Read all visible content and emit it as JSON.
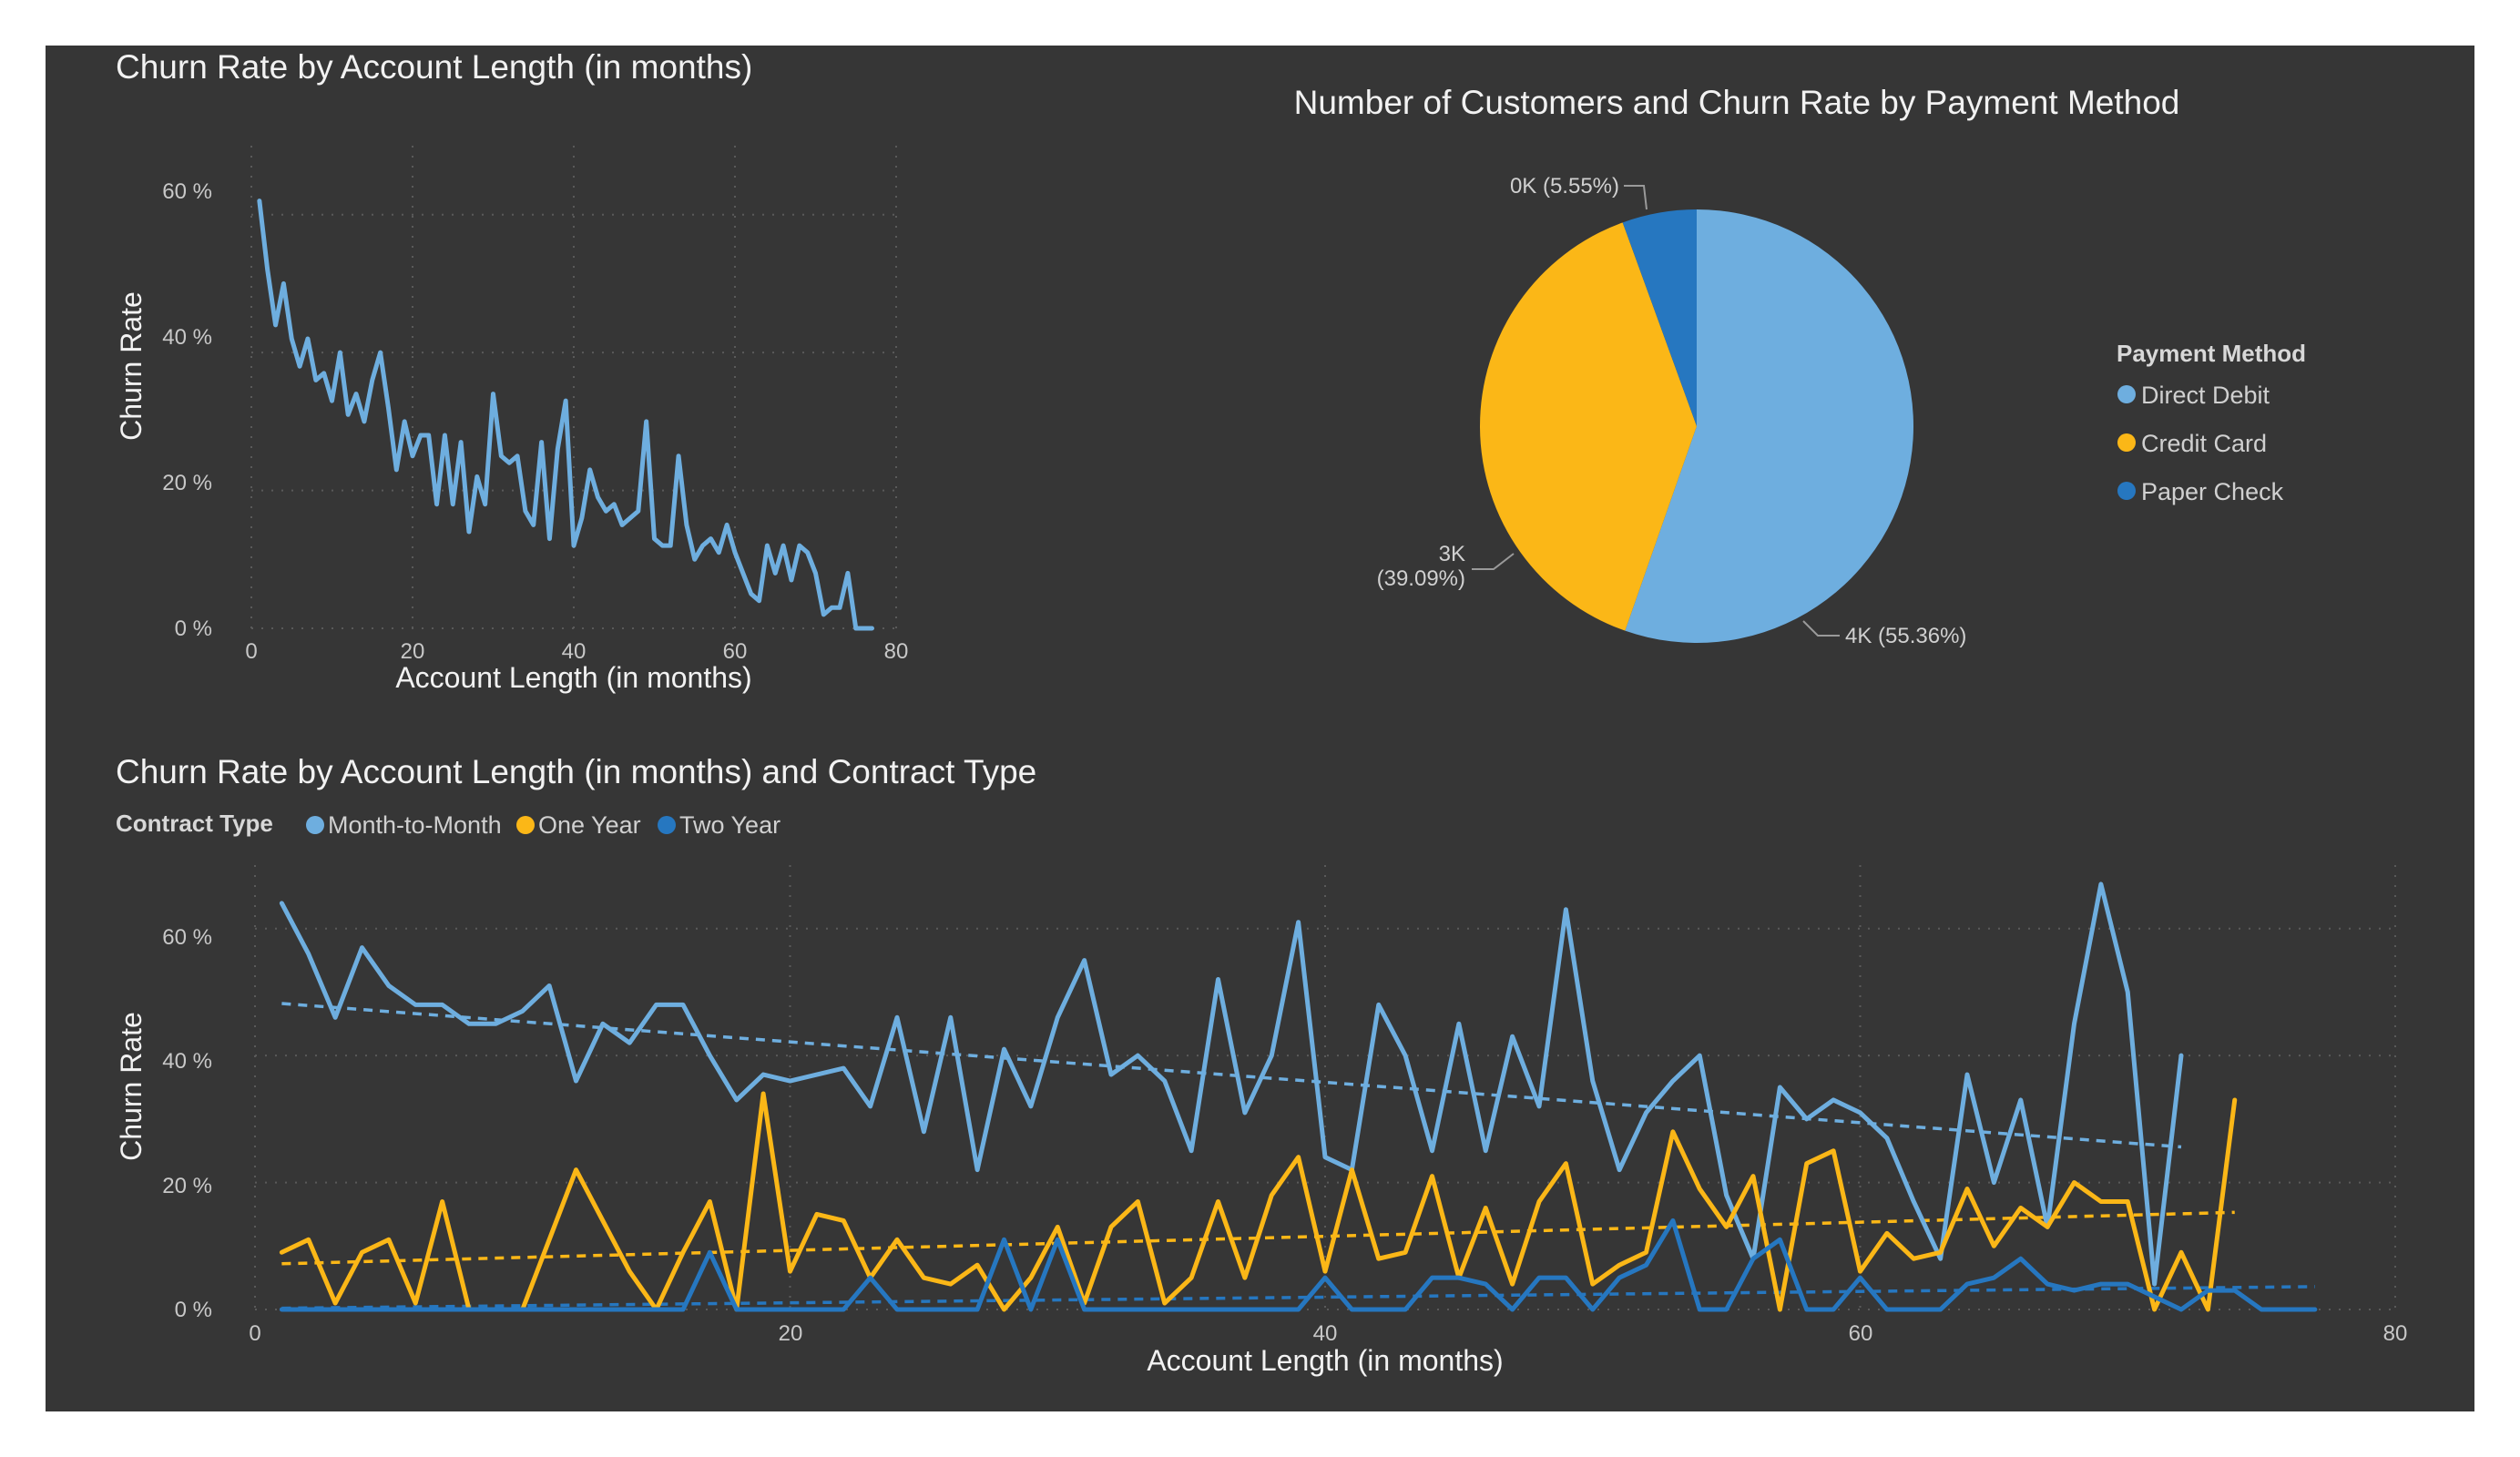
{
  "colors": {
    "background": "#363636",
    "direct_debit": "#6eaedf",
    "credit_card": "#fbb717",
    "paper_check": "#2677c0",
    "month_to_month": "#6eaedf",
    "one_year": "#fbb717",
    "two_year": "#2677c0"
  },
  "chart_data": [
    {
      "type": "line",
      "title": "Churn Rate by Account Length (in months)",
      "xlabel": "Account Length (in months)",
      "ylabel": "Churn Rate",
      "xlim": [
        0,
        80
      ],
      "ylim": [
        0,
        70
      ],
      "x_ticks": [
        "0",
        "20",
        "40",
        "60",
        "80"
      ],
      "y_ticks": [
        "0 %",
        "20 %",
        "40 %",
        "60 %"
      ],
      "grid": true,
      "series": [
        {
          "color": "#6eaedf",
          "x": [
            1,
            2,
            3,
            4,
            5,
            6,
            7,
            8,
            9,
            10,
            11,
            12,
            13,
            14,
            15,
            16,
            17,
            18,
            19,
            20,
            21,
            22,
            23,
            24,
            25,
            26,
            27,
            28,
            29,
            30,
            31,
            32,
            33,
            34,
            35,
            36,
            37,
            38,
            39,
            40,
            41,
            42,
            43,
            44,
            45,
            46,
            47,
            48,
            49,
            50,
            51,
            52,
            53,
            54,
            55,
            56,
            57,
            58,
            59,
            60,
            61,
            62,
            63,
            64,
            65,
            66,
            67,
            68,
            69,
            70,
            71,
            72,
            73,
            74,
            75,
            76,
            77
          ],
          "values": [
            62,
            52,
            44,
            50,
            42,
            38,
            42,
            36,
            37,
            33,
            40,
            31,
            34,
            30,
            36,
            40,
            32,
            23,
            30,
            25,
            28,
            28,
            18,
            28,
            18,
            27,
            14,
            22,
            18,
            34,
            25,
            24,
            25,
            17,
            15,
            27,
            13,
            26,
            33,
            12,
            16,
            23,
            19,
            17,
            18,
            15,
            16,
            17,
            30,
            13,
            12,
            12,
            25,
            15,
            10,
            12,
            13,
            11,
            15,
            11,
            8,
            5,
            4,
            12,
            8,
            12,
            7,
            12,
            11,
            8,
            2,
            3,
            3,
            8,
            0,
            0,
            0
          ]
        }
      ]
    },
    {
      "type": "pie",
      "title": "Number of Customers and Churn Rate by Payment Method",
      "legend_title": "Payment Method",
      "legend_position": "right",
      "slices": [
        {
          "name": "Direct Debit",
          "value": 55.36,
          "label": "4K (55.36%)",
          "color": "#6eaedf"
        },
        {
          "name": "Credit Card",
          "value": 39.09,
          "label_line1": "3K",
          "label_line2": "(39.09%)",
          "color": "#fbb717"
        },
        {
          "name": "Paper Check",
          "value": 5.55,
          "label": "0K (5.55%)",
          "color": "#2677c0"
        }
      ]
    },
    {
      "type": "line",
      "title": "Churn Rate by Account Length (in months) and Contract Type",
      "legend_title": "Contract Type",
      "legend_position": "top-left",
      "xlabel": "Account Length (in months)",
      "ylabel": "Churn Rate",
      "xlim": [
        0,
        80
      ],
      "ylim": [
        0,
        70
      ],
      "x_ticks": [
        "0",
        "20",
        "40",
        "60",
        "80"
      ],
      "y_ticks": [
        "0 %",
        "20 %",
        "40 %",
        "60 %"
      ],
      "grid": true,
      "trend_lines": true,
      "series": [
        {
          "name": "Month-to-Month",
          "color": "#6eaedf",
          "x": [
            1,
            2,
            3,
            4,
            5,
            6,
            7,
            8,
            9,
            10,
            11,
            12,
            13,
            14,
            15,
            16,
            17,
            18,
            19,
            20,
            21,
            22,
            23,
            24,
            25,
            26,
            27,
            28,
            29,
            30,
            31,
            32,
            33,
            34,
            35,
            36,
            37,
            38,
            39,
            40,
            41,
            42,
            43,
            44,
            45,
            46,
            47,
            48,
            49,
            50,
            51,
            52,
            53,
            54,
            55,
            56,
            57,
            58,
            59,
            60,
            61,
            62,
            63,
            64,
            65,
            66,
            67,
            68,
            69,
            70,
            71,
            72
          ],
          "values": [
            64,
            56,
            46,
            57,
            51,
            48,
            48,
            45,
            45,
            47,
            51,
            36,
            45,
            42,
            48,
            48,
            40,
            33,
            37,
            36,
            37,
            38,
            32,
            46,
            28,
            46,
            22,
            41,
            32,
            46,
            55,
            37,
            40,
            36,
            25,
            52,
            31,
            40,
            61,
            24,
            22,
            48,
            40,
            25,
            45,
            25,
            43,
            32,
            63,
            36,
            22,
            31,
            36,
            40,
            18,
            8,
            35,
            30,
            33,
            31,
            27,
            17,
            8,
            37,
            20,
            33,
            13,
            45,
            67,
            50,
            4,
            40
          ],
          "trend": [
            48.2,
            25.6
          ]
        },
        {
          "name": "One Year",
          "color": "#fbb717",
          "x": [
            1,
            2,
            3,
            4,
            5,
            6,
            7,
            8,
            9,
            10,
            11,
            12,
            13,
            14,
            15,
            16,
            17,
            18,
            19,
            20,
            21,
            22,
            23,
            24,
            25,
            26,
            27,
            28,
            29,
            30,
            31,
            32,
            33,
            34,
            35,
            36,
            37,
            38,
            39,
            40,
            41,
            42,
            43,
            44,
            45,
            46,
            47,
            48,
            49,
            50,
            51,
            52,
            53,
            54,
            55,
            56,
            57,
            58,
            59,
            60,
            61,
            62,
            63,
            64,
            65,
            66,
            67,
            68,
            69,
            70,
            71,
            72,
            73,
            74
          ],
          "values": [
            9,
            11,
            1,
            9,
            11,
            1,
            17,
            0,
            0,
            0,
            11,
            22,
            14,
            6,
            0,
            9,
            17,
            0,
            34,
            6,
            15,
            14,
            5,
            11,
            5,
            4,
            7,
            0,
            5,
            13,
            1,
            13,
            17,
            1,
            5,
            17,
            5,
            18,
            24,
            6,
            22,
            8,
            9,
            21,
            5,
            16,
            4,
            17,
            23,
            4,
            7,
            9,
            28,
            19,
            13,
            21,
            0,
            23,
            25,
            6,
            12,
            8,
            9,
            19,
            10,
            16,
            13,
            20,
            17,
            17,
            0,
            9,
            0,
            33
          ],
          "trend": [
            7.2,
            15.3
          ]
        },
        {
          "name": "Two Year",
          "color": "#2677c0",
          "x": [
            1,
            2,
            3,
            4,
            5,
            6,
            7,
            8,
            9,
            10,
            11,
            12,
            13,
            14,
            15,
            16,
            17,
            18,
            19,
            20,
            21,
            22,
            23,
            24,
            25,
            26,
            27,
            28,
            29,
            30,
            31,
            32,
            33,
            34,
            35,
            36,
            37,
            38,
            39,
            40,
            41,
            42,
            43,
            44,
            45,
            46,
            47,
            48,
            49,
            50,
            51,
            52,
            53,
            54,
            55,
            56,
            57,
            58,
            59,
            60,
            61,
            62,
            63,
            64,
            65,
            66,
            67,
            68,
            69,
            70,
            71,
            72,
            73,
            74,
            75,
            76,
            77
          ],
          "values": [
            0,
            0,
            0,
            0,
            0,
            0,
            0,
            0,
            0,
            0,
            0,
            0,
            0,
            0,
            0,
            0,
            9,
            0,
            0,
            0,
            0,
            0,
            5,
            0,
            0,
            0,
            0,
            11,
            0,
            11,
            0,
            0,
            0,
            0,
            0,
            0,
            0,
            0,
            0,
            5,
            0,
            0,
            0,
            5,
            5,
            4,
            0,
            5,
            5,
            0,
            5,
            7,
            14,
            0,
            0,
            8,
            11,
            0,
            0,
            5,
            0,
            0,
            0,
            4,
            5,
            8,
            4,
            3,
            4,
            4,
            2,
            0,
            3,
            3,
            0,
            0,
            0
          ],
          "trend": [
            0.2,
            3.6
          ]
        }
      ]
    }
  ]
}
